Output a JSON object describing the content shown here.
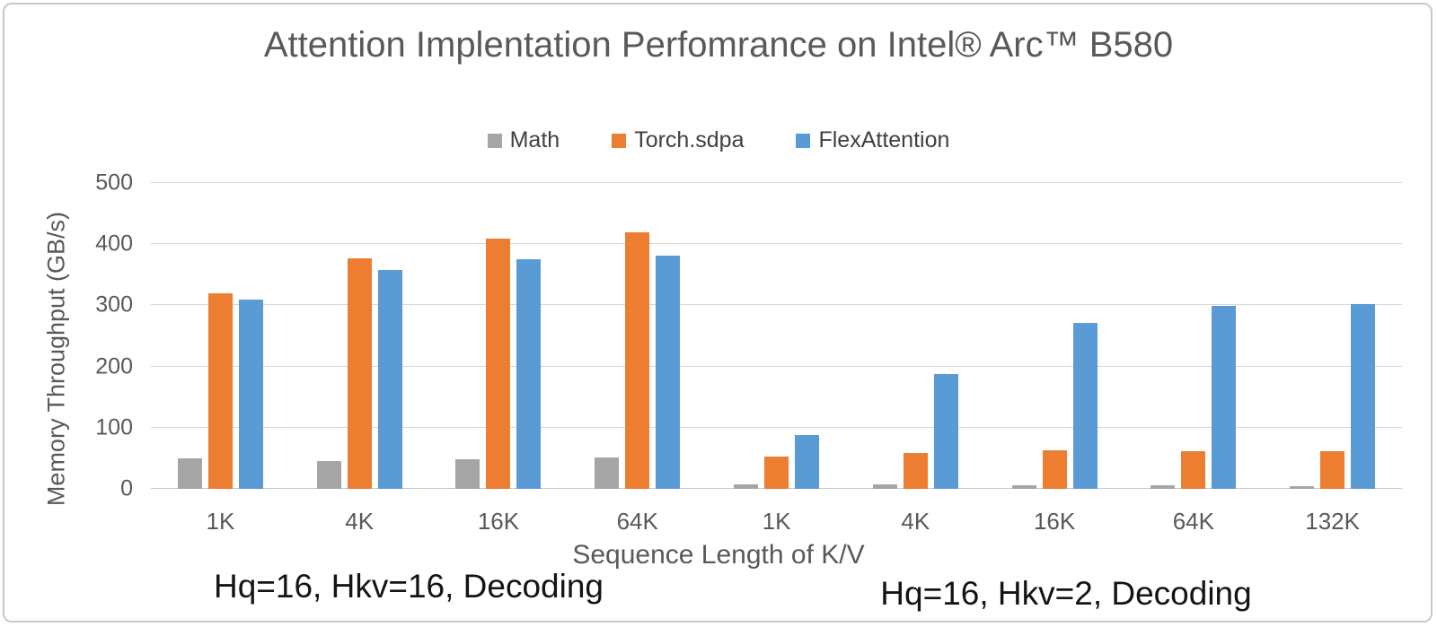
{
  "title": "Attention Implentation Perfomrance on Intel® Arc™ B580",
  "chart_data": {
    "type": "bar",
    "title": "Attention Implentation Perfomrance on Intel® Arc™ B580",
    "categories": [
      "1K",
      "4K",
      "16K",
      "64K",
      "1K",
      "4K",
      "16K",
      "64K",
      "132K"
    ],
    "series": [
      {
        "name": "Math",
        "color": "#A5A5A5",
        "values": [
          50,
          46,
          49,
          51,
          7,
          7,
          6,
          6,
          5
        ]
      },
      {
        "name": "Torch.sdpa",
        "color": "#ED7D31",
        "values": [
          320,
          377,
          409,
          419,
          53,
          59,
          63,
          62,
          62
        ]
      },
      {
        "name": "FlexAttention",
        "color": "#5B9BD5",
        "values": [
          309,
          358,
          376,
          381,
          88,
          188,
          271,
          299,
          302
        ]
      }
    ],
    "xlabel": "Sequence Length of K/V",
    "ylabel": "Memory Throughput (GB/s)",
    "ylim": [
      0,
      500
    ],
    "yticks": [
      0,
      100,
      200,
      300,
      400,
      500
    ],
    "grid": true,
    "legend_position": "top-center",
    "annotations": [
      "Hq=16, Hkv=16, Decoding",
      "Hq=16, Hkv=2, Decoding"
    ],
    "colors": {
      "gridline": "#D9D9D9",
      "axis_baseline": "#C9C9C9",
      "tick_label": "#595959",
      "title_text": "#595959",
      "annotation_text": "#141414"
    }
  }
}
